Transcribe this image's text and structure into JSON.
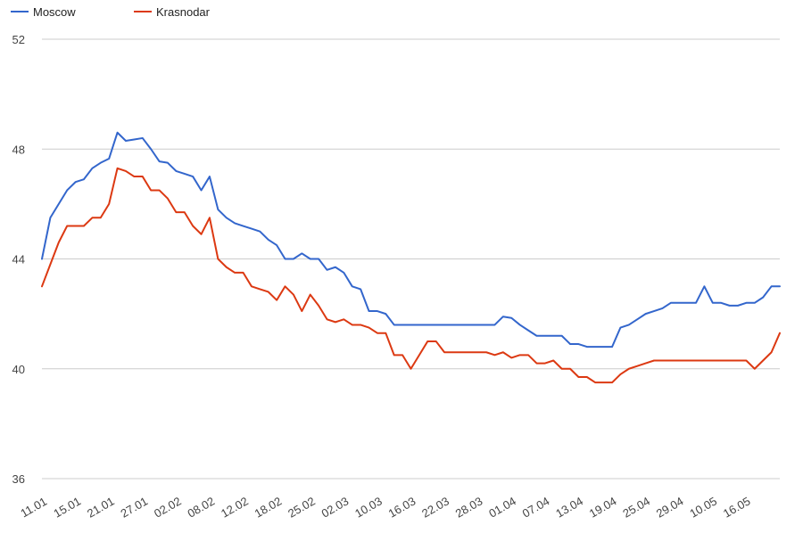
{
  "chart_data": {
    "type": "line",
    "title": "",
    "xlabel": "",
    "ylabel": "",
    "ylim": [
      36,
      52
    ],
    "y_ticks": [
      36,
      40,
      44,
      48,
      52
    ],
    "grid": true,
    "legend_position": "top-left",
    "x_tick_labels": [
      "11.01",
      "15.01",
      "21.01",
      "27.01",
      "02.02",
      "08.02",
      "12.02",
      "18.02",
      "25.02",
      "02.03",
      "10.03",
      "16.03",
      "22.03",
      "28.03",
      "01.04",
      "07.04",
      "13.04",
      "19.04",
      "25.04",
      "29.04",
      "10.05",
      "16.05"
    ],
    "series": [
      {
        "name": "Moscow",
        "color": "#3366cc",
        "values": [
          44.0,
          45.5,
          46.0,
          46.5,
          46.8,
          46.9,
          47.3,
          47.5,
          47.65,
          48.6,
          48.3,
          48.35,
          48.4,
          48.0,
          47.55,
          47.5,
          47.2,
          47.1,
          47.0,
          46.5,
          47.0,
          45.8,
          45.5,
          45.3,
          45.2,
          45.1,
          45.0,
          44.7,
          44.5,
          44.0,
          44.0,
          44.2,
          44.0,
          44.0,
          43.6,
          43.7,
          43.5,
          43.0,
          42.9,
          42.1,
          42.1,
          42.0,
          41.6,
          41.6,
          41.6,
          41.6,
          41.6,
          41.6,
          41.6,
          41.6,
          41.6,
          41.6,
          41.6,
          41.6,
          41.6,
          41.9,
          41.85,
          41.6,
          41.4,
          41.2,
          41.2,
          41.2,
          41.2,
          40.9,
          40.9,
          40.8,
          40.8,
          40.8,
          40.8,
          41.5,
          41.6,
          41.8,
          42.0,
          42.1,
          42.2,
          42.4,
          42.4,
          42.4,
          42.4,
          43.0,
          42.4,
          42.4,
          42.3,
          42.3,
          42.4,
          42.4,
          42.6,
          43.0,
          43.0
        ]
      },
      {
        "name": "Krasnodar",
        "color": "#dc3912",
        "values": [
          43.0,
          43.8,
          44.6,
          45.2,
          45.2,
          45.2,
          45.5,
          45.5,
          46.0,
          47.3,
          47.2,
          47.0,
          47.0,
          46.5,
          46.5,
          46.2,
          45.7,
          45.7,
          45.2,
          44.9,
          45.5,
          44.0,
          43.7,
          43.5,
          43.5,
          43.0,
          42.9,
          42.8,
          42.5,
          43.0,
          42.7,
          42.1,
          42.7,
          42.3,
          41.8,
          41.7,
          41.8,
          41.6,
          41.6,
          41.5,
          41.3,
          41.3,
          40.5,
          40.5,
          40.0,
          40.5,
          41.0,
          41.0,
          40.6,
          40.6,
          40.6,
          40.6,
          40.6,
          40.6,
          40.5,
          40.6,
          40.4,
          40.5,
          40.5,
          40.2,
          40.2,
          40.3,
          40.0,
          40.0,
          39.7,
          39.7,
          39.5,
          39.5,
          39.5,
          39.8,
          40.0,
          40.1,
          40.2,
          40.3,
          40.3,
          40.3,
          40.3,
          40.3,
          40.3,
          40.3,
          40.3,
          40.3,
          40.3,
          40.3,
          40.3,
          40.0,
          40.3,
          40.6,
          41.3
        ]
      }
    ]
  }
}
